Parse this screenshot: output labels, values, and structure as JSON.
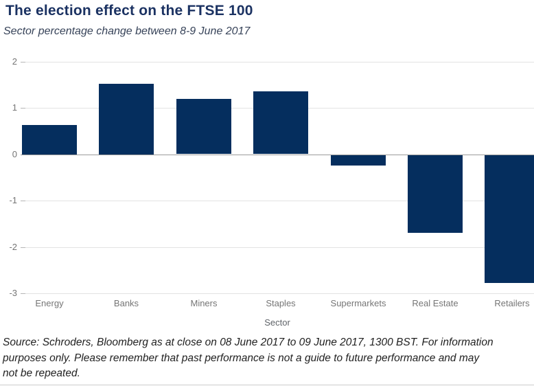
{
  "header": {
    "title": "The election effect on the FTSE 100",
    "subtitle": "Sector percentage change between 8-9 June 2017"
  },
  "chart_data": {
    "type": "bar",
    "title": "The election effect on the FTSE 100",
    "subtitle": "Sector percentage change between 8-9 June 2017",
    "categories": [
      "Energy",
      "Banks",
      "Miners",
      "Staples",
      "Supermarkets",
      "Real Estate",
      "Retailers"
    ],
    "values": [
      0.63,
      1.52,
      1.19,
      1.35,
      -0.22,
      -1.67,
      -2.76
    ],
    "xlabel": "Sector",
    "ylabel": "",
    "ylim": [
      -3,
      2
    ],
    "yticks": [
      2,
      1,
      0,
      -1,
      -2,
      -3
    ],
    "grid": true,
    "legend": "none",
    "bar_color": "#052e5e"
  },
  "footer": {
    "source_lines": [
      "Source: Schroders, Bloomberg as at close on 08 June 2017 to 09 June 2017, 1300 BST. For information",
      "purposes only. Please remember that past performance is not a guide to future performance and may",
      "not be repeated."
    ]
  },
  "colors": {
    "title": "#1b3262",
    "subtitle": "#374359",
    "bar": "#052e5e",
    "gridline": "#e3e3e3",
    "zero_line": "#9b9b9b",
    "axis_label": "#757575",
    "source_text": "#212121"
  }
}
